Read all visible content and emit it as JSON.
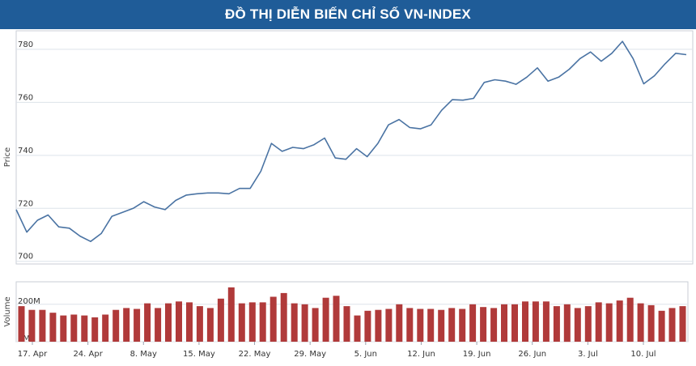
{
  "banner": {
    "title": "ĐỒ THỊ DIỄN BIẾN CHỈ SỐ VN-INDEX"
  },
  "colors": {
    "banner": "#1f5c98",
    "price_line": "#4a73a3",
    "volume_bar": "#b03a3a",
    "grid": "#dde3ea"
  },
  "chart_data": [
    {
      "type": "line",
      "title": "",
      "xlabel": "",
      "ylabel": "Price",
      "ylim": [
        699,
        787
      ],
      "yticks": [
        700,
        720,
        740,
        760,
        780
      ],
      "grid": true,
      "series": [
        {
          "values": [
            719.5,
            711,
            715.5,
            717.5,
            713,
            712.5,
            709.5,
            707.5,
            710.5,
            717,
            718.5,
            720,
            722.5,
            720.5,
            719.5,
            723,
            725,
            725.5,
            725.8,
            725.8,
            725.5,
            727.5,
            727.5,
            734,
            744.5,
            741.5,
            743,
            742.5,
            744,
            746.5,
            739,
            738.5,
            742.5,
            739.5,
            744.5,
            751.5,
            753.5,
            750.5,
            750,
            751.5,
            757,
            761,
            760.8,
            761.5,
            767.5,
            768.5,
            768,
            766.8,
            769.5,
            773,
            768,
            769.5,
            772.5,
            776.5,
            779,
            775.5,
            778.5,
            783,
            776.5,
            767,
            770,
            774.5,
            778.5,
            778
          ]
        }
      ]
    },
    {
      "type": "bar",
      "title": "",
      "xlabel": "",
      "ylabel": "Volume",
      "ylim": [
        0,
        320
      ],
      "yticks": [
        0,
        200
      ],
      "ytick_labels": [
        "0M",
        "200M"
      ],
      "grid": true,
      "x_tick_labels": [
        "17. Apr",
        "24. Apr",
        "8. May",
        "15. May",
        "22. May",
        "29. May",
        "5. Jun",
        "12. Jun",
        "19. Jun",
        "26. Jun",
        "3. Jul",
        "10. Jul"
      ],
      "series": [
        {
          "values": [
            190,
            170,
            170,
            155,
            140,
            145,
            140,
            130,
            145,
            170,
            180,
            175,
            205,
            180,
            205,
            215,
            210,
            190,
            180,
            230,
            290,
            205,
            210,
            210,
            240,
            260,
            205,
            200,
            180,
            235,
            245,
            190,
            140,
            165,
            170,
            175,
            200,
            180,
            175,
            175,
            170,
            180,
            175,
            200,
            185,
            180,
            200,
            200,
            215,
            215,
            215,
            190,
            200,
            180,
            190,
            210,
            205,
            220,
            235,
            205,
            195,
            165,
            180,
            190
          ]
        }
      ]
    }
  ]
}
